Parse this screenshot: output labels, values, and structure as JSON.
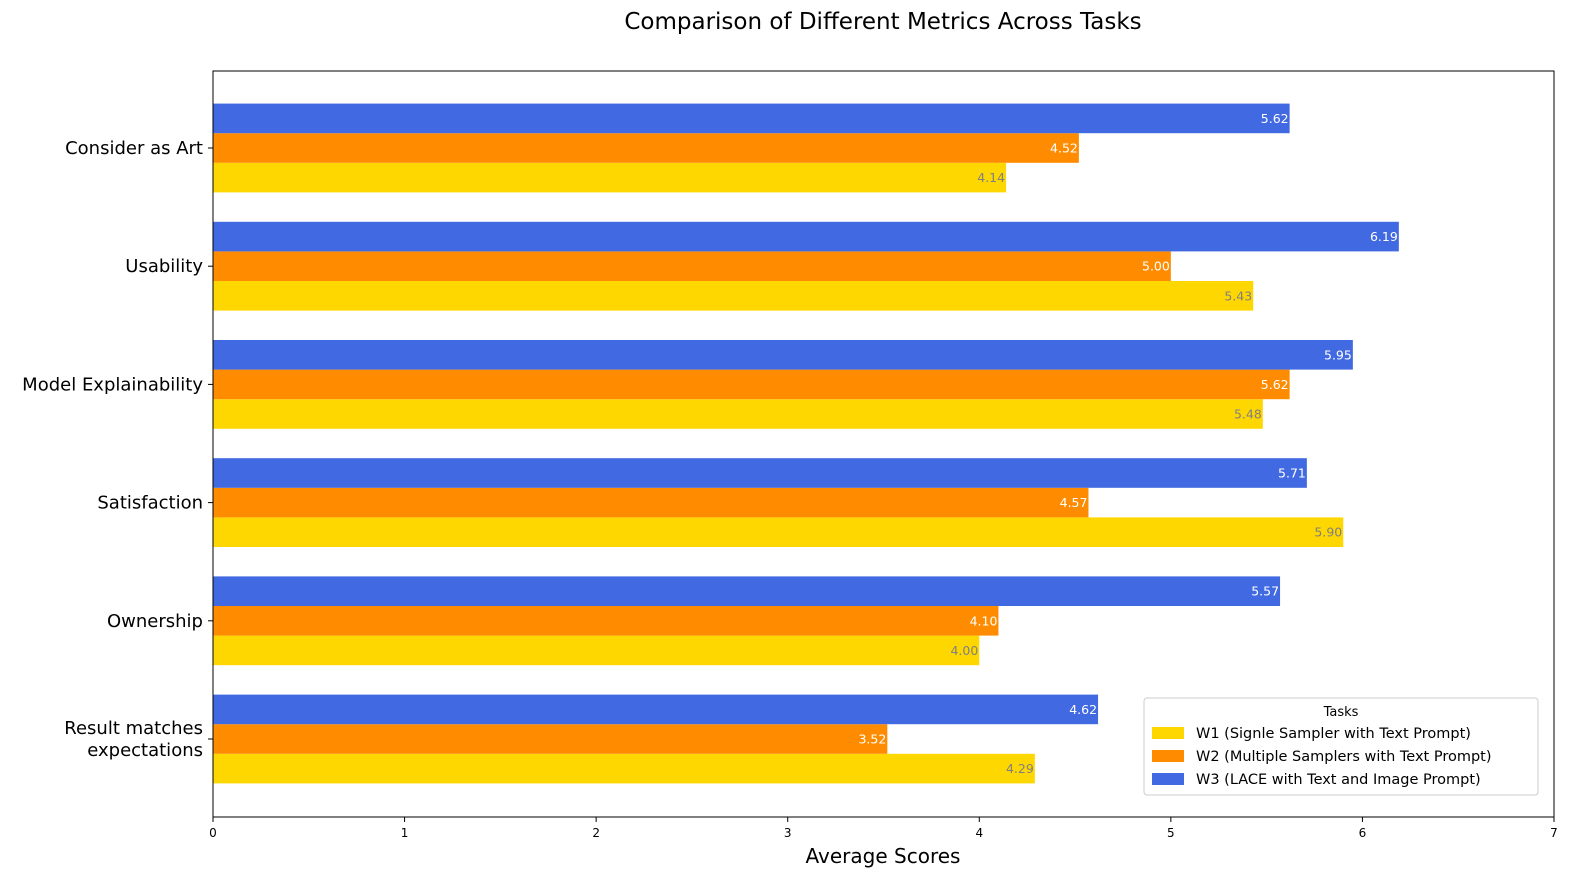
{
  "chart_data": {
    "type": "bar",
    "orientation": "horizontal",
    "title": "Comparison of Different Metrics Across Tasks",
    "xlabel": "Average Scores",
    "ylabel": "",
    "xlim": [
      0,
      7
    ],
    "xticks": [
      "0",
      "1",
      "2",
      "3",
      "4",
      "5",
      "6",
      "7"
    ],
    "grid": false,
    "categories": [
      "Consider as Art",
      "Usability",
      "Model Explainability",
      "Satisfaction",
      "Ownership",
      [
        "Result matches",
        "expectations"
      ]
    ],
    "series": [
      {
        "name": "W1 (Signle Sampler with Text Prompt)",
        "color": "#FFD700",
        "label_color": "#808080",
        "values": [
          4.14,
          5.43,
          5.48,
          5.9,
          4.0,
          4.29
        ],
        "labels": [
          "4.14",
          "5.43",
          "5.48",
          "5.90",
          "4.00",
          "4.29"
        ]
      },
      {
        "name": "W2 (Multiple Samplers with Text Prompt)",
        "color": "#FF8C00",
        "label_color": "#FFFFFF",
        "values": [
          4.52,
          5.0,
          5.62,
          4.57,
          4.1,
          3.52
        ],
        "labels": [
          "4.52",
          "5.00",
          "5.62",
          "4.57",
          "4.10",
          "3.52"
        ]
      },
      {
        "name": "W3 (LACE with Text and Image Prompt)",
        "color": "#4169E1",
        "label_color": "#FFFFFF",
        "values": [
          5.62,
          6.19,
          5.95,
          5.71,
          5.57,
          4.62
        ],
        "labels": [
          "5.62",
          "6.19",
          "5.95",
          "5.71",
          "5.57",
          "4.62"
        ]
      }
    ],
    "legend": {
      "title": "Tasks",
      "placement": "lower-right"
    }
  }
}
